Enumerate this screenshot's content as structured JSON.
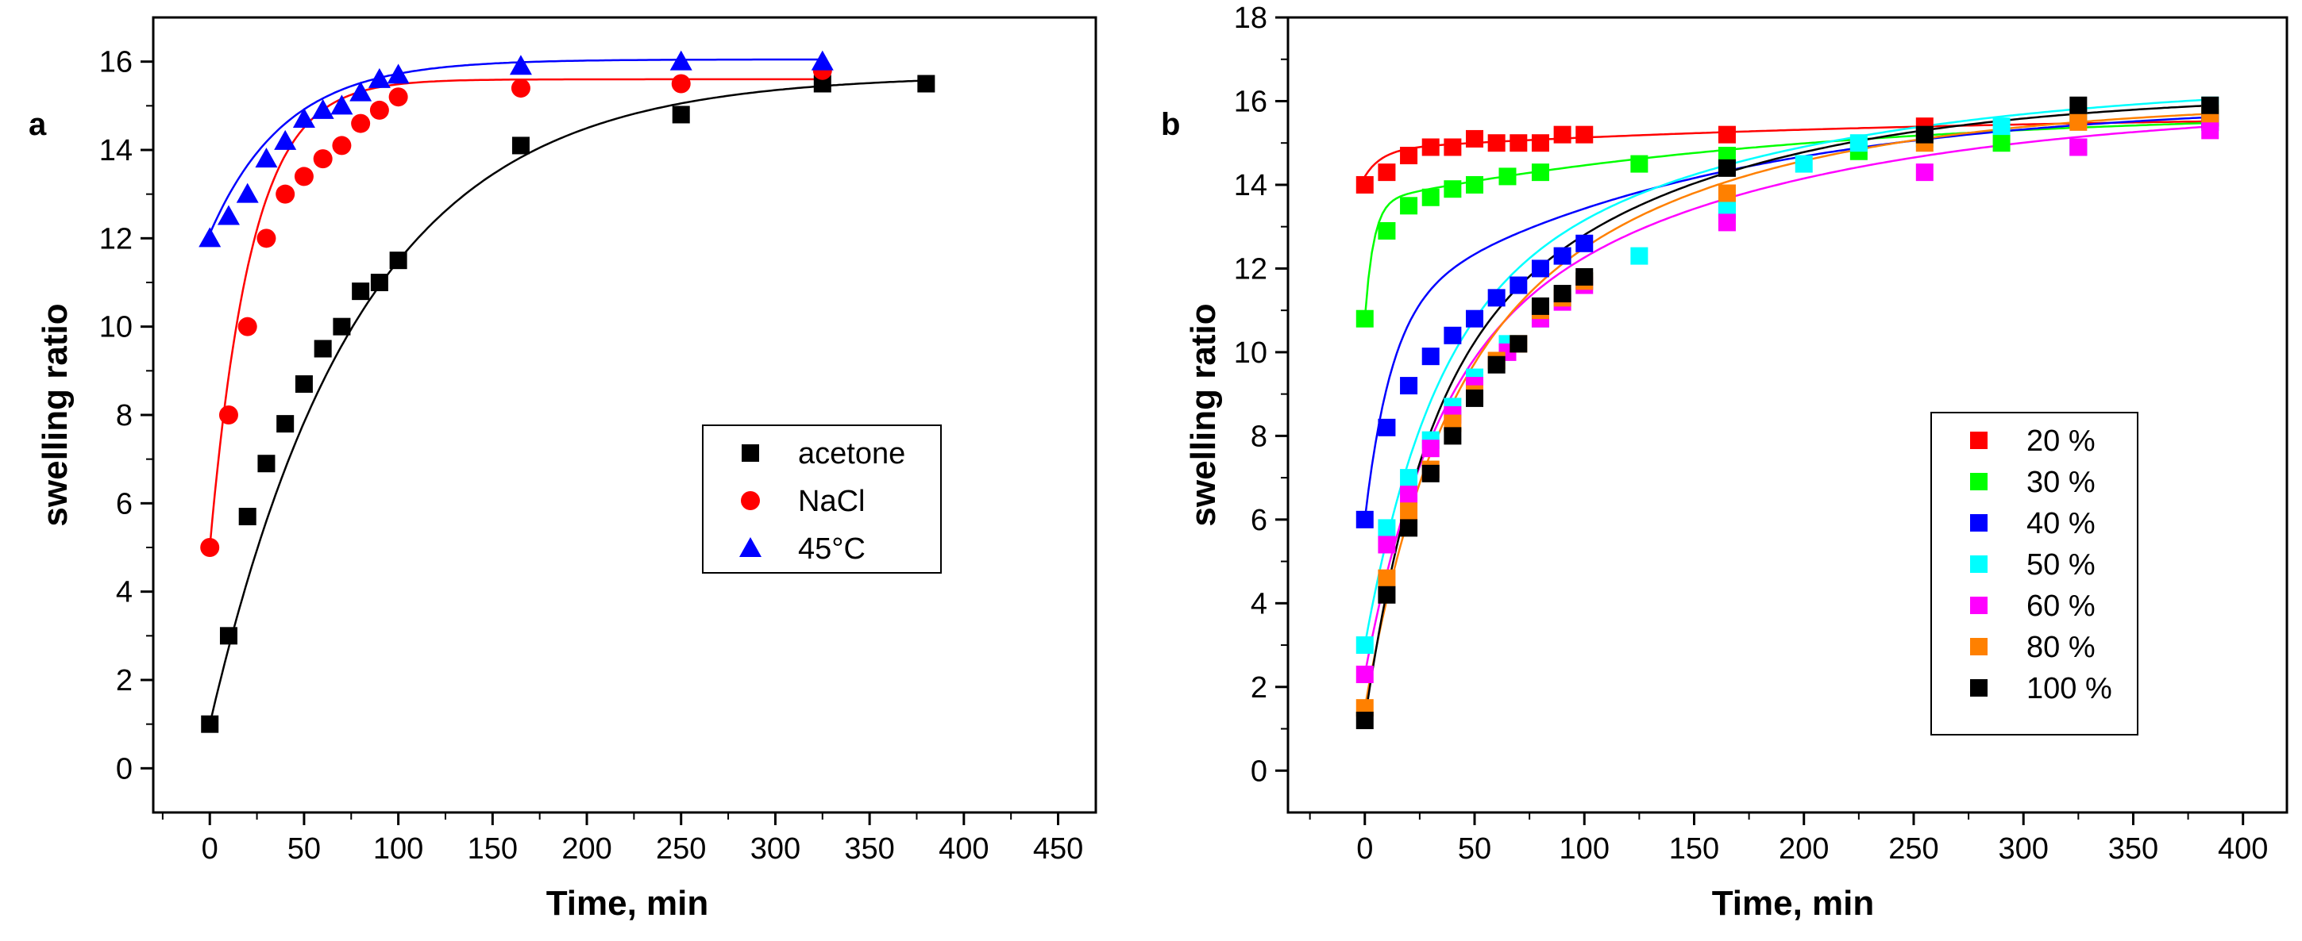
{
  "chart_data": [
    {
      "type": "scatter",
      "panel_label": "a",
      "xlabel": "Time, min",
      "ylabel": "swelling ratio",
      "xlim": [
        -30,
        470
      ],
      "ylim": [
        -1,
        17
      ],
      "xticks": [
        0,
        50,
        100,
        150,
        200,
        250,
        300,
        350,
        400,
        450
      ],
      "yticks": [
        0,
        2,
        4,
        6,
        8,
        10,
        12,
        14,
        16
      ],
      "legend_position": "center-right",
      "series": [
        {
          "name": "acetone",
          "marker": "square",
          "color": "#000000",
          "x": [
            0,
            10,
            20,
            30,
            40,
            50,
            60,
            70,
            80,
            90,
            100,
            165,
            250,
            325,
            380
          ],
          "y": [
            1.0,
            3.0,
            5.7,
            6.9,
            7.8,
            8.7,
            9.5,
            10.0,
            10.8,
            11.0,
            11.5,
            14.1,
            14.8,
            15.5,
            15.5
          ],
          "fit": {
            "model": "exp",
            "a": 15.7,
            "b": 14.7,
            "tau": 80
          }
        },
        {
          "name": "NaCl",
          "marker": "circle",
          "color": "#ff0000",
          "x": [
            0,
            10,
            20,
            30,
            40,
            50,
            60,
            70,
            80,
            90,
            100,
            165,
            250,
            325
          ],
          "y": [
            5.0,
            8.0,
            10.0,
            12.0,
            13.0,
            13.4,
            13.8,
            14.1,
            14.6,
            14.9,
            15.2,
            15.4,
            15.5,
            15.8
          ],
          "fit": {
            "model": "exp",
            "a": 15.6,
            "b": 10.6,
            "tau": 22
          }
        },
        {
          "name": "45°C",
          "marker": "triangle",
          "color": "#0000ff",
          "x": [
            0,
            10,
            20,
            30,
            40,
            50,
            60,
            70,
            80,
            90,
            100,
            165,
            250,
            325
          ],
          "y": [
            12.0,
            12.5,
            13.0,
            13.8,
            14.2,
            14.7,
            14.9,
            15.0,
            15.3,
            15.6,
            15.7,
            15.9,
            16.0,
            16.0
          ],
          "fit": {
            "model": "exp",
            "a": 16.05,
            "b": 3.95,
            "tau": 40
          }
        }
      ]
    },
    {
      "type": "scatter",
      "panel_label": "b",
      "xlabel": "Time, min",
      "ylabel": "swelling ratio",
      "xlim": [
        -35,
        420
      ],
      "ylim": [
        -1,
        18
      ],
      "xticks": [
        0,
        50,
        100,
        150,
        200,
        250,
        300,
        350,
        400
      ],
      "yticks": [
        0,
        2,
        4,
        6,
        8,
        10,
        12,
        14,
        16,
        18
      ],
      "legend_position": "bottom-right",
      "series": [
        {
          "name": "20 %",
          "marker": "square",
          "color": "#ff0000",
          "x": [
            0,
            10,
            20,
            30,
            40,
            50,
            60,
            70,
            80,
            90,
            100,
            165,
            255,
            325,
            385
          ],
          "y": [
            14.0,
            14.3,
            14.7,
            14.9,
            14.9,
            15.1,
            15.0,
            15.0,
            15.0,
            15.2,
            15.2,
            15.2,
            15.4,
            15.6,
            15.6
          ],
          "fit": {
            "model": "double-exp",
            "a": 15.7,
            "b": 0.65,
            "tau1": 8,
            "c": 0.85,
            "tau2": 250
          }
        },
        {
          "name": "30 %",
          "marker": "square",
          "color": "#00ff00",
          "x": [
            0,
            10,
            20,
            30,
            40,
            50,
            65,
            80,
            125,
            165,
            225,
            290,
            385
          ],
          "y": [
            10.8,
            12.9,
            13.5,
            13.7,
            13.9,
            14.0,
            14.2,
            14.3,
            14.5,
            14.7,
            14.8,
            15.0,
            15.6
          ],
          "fit": {
            "model": "double-exp",
            "a": 15.8,
            "b": 2.8,
            "tau1": 4,
            "c": 2.2,
            "tau2": 200
          }
        },
        {
          "name": "40 %",
          "marker": "square",
          "color": "#0000ff",
          "x": [
            0,
            10,
            20,
            30,
            40,
            50,
            60,
            70,
            80,
            90,
            100,
            165,
            325,
            385
          ],
          "y": [
            6.0,
            8.2,
            9.2,
            9.9,
            10.4,
            10.8,
            11.3,
            11.6,
            12.0,
            12.3,
            12.6,
            13.4,
            14.9,
            15.5
          ],
          "fit": {
            "model": "double-exp",
            "a": 16.0,
            "b": 5.0,
            "tau1": 12,
            "c": 5.0,
            "tau2": 150
          }
        },
        {
          "name": "50 %",
          "marker": "square",
          "color": "#00ffff",
          "x": [
            0,
            10,
            20,
            30,
            40,
            50,
            65,
            80,
            90,
            100,
            125,
            165,
            200,
            225,
            255,
            290,
            325,
            385
          ],
          "y": [
            3.0,
            5.8,
            7.0,
            7.9,
            8.7,
            9.4,
            10.2,
            10.8,
            11.3,
            11.7,
            12.3,
            13.5,
            14.5,
            15.0,
            15.1,
            15.4,
            15.6,
            15.9
          ],
          "fit": {
            "model": "double-exp",
            "a": 16.5,
            "b": 7.5,
            "tau1": 30,
            "c": 6.0,
            "tau2": 150
          }
        },
        {
          "name": "60 %",
          "marker": "square",
          "color": "#ff00ff",
          "x": [
            0,
            10,
            20,
            30,
            40,
            50,
            65,
            80,
            90,
            100,
            165,
            255,
            325,
            385
          ],
          "y": [
            2.3,
            5.4,
            6.6,
            7.7,
            8.5,
            9.2,
            10.0,
            10.8,
            11.2,
            11.6,
            13.1,
            14.3,
            14.9,
            15.3
          ],
          "fit": {
            "model": "double-exp",
            "a": 15.9,
            "b": 7.0,
            "tau1": 30,
            "c": 6.6,
            "tau2": 150
          }
        },
        {
          "name": "80 %",
          "marker": "square",
          "color": "#ff8000",
          "x": [
            0,
            10,
            20,
            30,
            40,
            50,
            60,
            70,
            80,
            90,
            100,
            165,
            255,
            325,
            385
          ],
          "y": [
            1.5,
            4.6,
            6.2,
            7.2,
            8.3,
            9.0,
            9.8,
            10.2,
            11.0,
            11.3,
            11.7,
            13.8,
            15.0,
            15.5,
            15.7
          ],
          "fit": {
            "model": "double-exp",
            "a": 16.0,
            "b": 7.0,
            "tau1": 30,
            "c": 7.5,
            "tau2": 120
          }
        },
        {
          "name": "100 %",
          "marker": "square",
          "color": "#000000",
          "x": [
            0,
            10,
            20,
            30,
            40,
            50,
            60,
            70,
            80,
            90,
            100,
            165,
            255,
            325,
            385
          ],
          "y": [
            1.2,
            4.2,
            5.8,
            7.1,
            8.0,
            8.9,
            9.7,
            10.2,
            11.1,
            11.4,
            11.8,
            14.4,
            15.2,
            15.9,
            15.9
          ],
          "fit": {
            "model": "double-exp",
            "a": 16.2,
            "b": 7.5,
            "tau1": 25,
            "c": 7.5,
            "tau2": 120
          }
        }
      ]
    }
  ]
}
